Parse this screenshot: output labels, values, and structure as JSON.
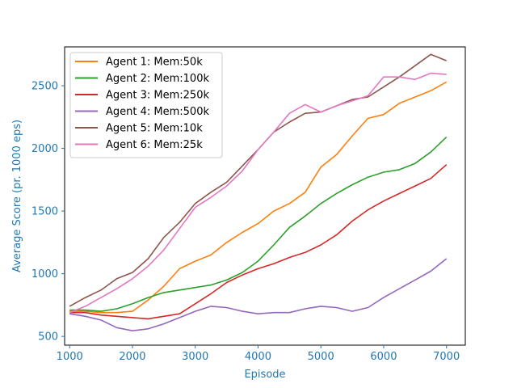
{
  "chart_data": {
    "type": "line",
    "xlabel": "Episode",
    "ylabel": "Average Score (pr. 1000 eps)",
    "xlim": [
      920,
      7300
    ],
    "ylim": [
      430,
      2810
    ],
    "xticks": [
      1000,
      2000,
      3000,
      4000,
      5000,
      6000,
      7000
    ],
    "yticks": [
      500,
      1000,
      1500,
      2000,
      2500
    ],
    "axis_color": "#1f77b4",
    "legend_placement": "upper left",
    "grid": false,
    "series": [
      {
        "name": "Agent 1: Mem:50k",
        "color": "#ff7f0e",
        "x": [
          1000,
          1250,
          1500,
          1750,
          2000,
          2250,
          2500,
          2750,
          3000,
          3250,
          3500,
          3750,
          4000,
          4250,
          4500,
          4750,
          5000,
          5250,
          5500,
          5750,
          6000,
          6250,
          6500,
          6750,
          7000
        ],
        "y": [
          700,
          700,
          690,
          690,
          700,
          790,
          900,
          1040,
          1100,
          1150,
          1250,
          1330,
          1400,
          1500,
          1560,
          1650,
          1850,
          1950,
          2100,
          2240,
          2270,
          2360,
          2410,
          2460,
          2530
        ]
      },
      {
        "name": "Agent 2: Mem:100k",
        "color": "#2ca02c",
        "x": [
          1000,
          1250,
          1500,
          1750,
          2000,
          2250,
          2500,
          2750,
          3000,
          3250,
          3500,
          3750,
          4000,
          4250,
          4500,
          4750,
          5000,
          5250,
          5500,
          5750,
          6000,
          6250,
          6500,
          6750,
          7000
        ],
        "y": [
          710,
          710,
          700,
          720,
          760,
          810,
          850,
          870,
          890,
          910,
          950,
          1010,
          1100,
          1230,
          1370,
          1460,
          1560,
          1640,
          1710,
          1770,
          1810,
          1830,
          1880,
          1970,
          2090
        ]
      },
      {
        "name": "Agent 3: Mem:250k",
        "color": "#d62728",
        "x": [
          1000,
          1250,
          1500,
          1750,
          2000,
          2250,
          2500,
          2750,
          3000,
          3250,
          3500,
          3750,
          4000,
          4250,
          4500,
          4750,
          5000,
          5250,
          5500,
          5750,
          6000,
          6250,
          6500,
          6750,
          7000
        ],
        "y": [
          690,
          690,
          670,
          660,
          650,
          640,
          660,
          680,
          760,
          840,
          930,
          990,
          1040,
          1080,
          1130,
          1170,
          1230,
          1310,
          1420,
          1510,
          1580,
          1640,
          1700,
          1760,
          1870
        ]
      },
      {
        "name": "Agent 4: Mem:500k",
        "color": "#9467bd",
        "x": [
          1000,
          1250,
          1500,
          1750,
          2000,
          2250,
          2500,
          2750,
          3000,
          3250,
          3500,
          3750,
          4000,
          4250,
          4500,
          4750,
          5000,
          5250,
          5500,
          5750,
          6000,
          6250,
          6500,
          6750,
          7000
        ],
        "y": [
          680,
          660,
          630,
          570,
          545,
          560,
          600,
          650,
          700,
          740,
          730,
          700,
          680,
          690,
          690,
          720,
          740,
          730,
          700,
          730,
          810,
          880,
          950,
          1020,
          1120
        ]
      },
      {
        "name": "Agent 5: Mem:10k",
        "color": "#8c564b",
        "x": [
          1000,
          1250,
          1500,
          1750,
          2000,
          2250,
          2500,
          2750,
          3000,
          3250,
          3500,
          3750,
          4000,
          4250,
          4500,
          4750,
          5000,
          5250,
          5500,
          5750,
          6000,
          6250,
          6500,
          6750,
          7000
        ],
        "y": [
          740,
          810,
          870,
          960,
          1010,
          1120,
          1290,
          1410,
          1560,
          1650,
          1730,
          1860,
          1990,
          2130,
          2210,
          2280,
          2290,
          2340,
          2390,
          2410,
          2490,
          2570,
          2660,
          2750,
          2700
        ]
      },
      {
        "name": "Agent 6: Mem:25k",
        "color": "#e377c2",
        "x": [
          1000,
          1250,
          1500,
          1750,
          2000,
          2250,
          2500,
          2750,
          3000,
          3250,
          3500,
          3750,
          4000,
          4250,
          4500,
          4750,
          5000,
          5250,
          5500,
          5750,
          6000,
          6250,
          6500,
          6750,
          7000
        ],
        "y": [
          690,
          740,
          810,
          880,
          960,
          1060,
          1190,
          1360,
          1530,
          1610,
          1700,
          1820,
          1990,
          2130,
          2280,
          2350,
          2290,
          2340,
          2380,
          2420,
          2570,
          2570,
          2550,
          2600,
          2590
        ]
      }
    ]
  }
}
